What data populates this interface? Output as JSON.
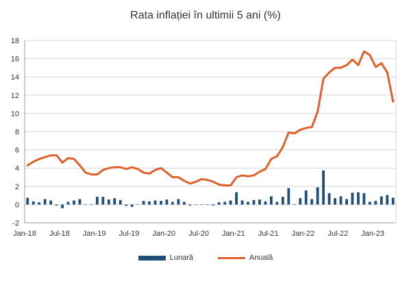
{
  "chart_data": {
    "type": "bar",
    "title": "Rata inflației în ultimii 5 ani (%)",
    "ylim": [
      -2,
      18
    ],
    "yticks": [
      -2,
      0,
      2,
      4,
      6,
      8,
      10,
      12,
      14,
      16,
      18
    ],
    "x_tick_labels": [
      "Jan-18",
      "Jul-18",
      "Jan-19",
      "Jul-19",
      "Jan-20",
      "Jul-20",
      "Jan-21",
      "Jul-21",
      "Jan-22",
      "Jul-22",
      "Jan-23"
    ],
    "x_tick_period": 6,
    "grid": true,
    "legend": "bottom",
    "colors": {
      "monthly": "#1F4E79",
      "annual": "#E0602A"
    },
    "series": [
      {
        "name": "Lunară",
        "type": "bar",
        "values": [
          0.75,
          0.35,
          0.25,
          0.6,
          0.45,
          -0.1,
          -0.4,
          0.3,
          0.45,
          0.6,
          0.05,
          0.05,
          0.85,
          0.85,
          0.55,
          0.7,
          0.5,
          -0.15,
          -0.25,
          0.0,
          0.4,
          0.35,
          0.45,
          0.4,
          0.55,
          0.3,
          0.6,
          0.3,
          -0.1,
          -0.05,
          -0.05,
          0.0,
          -0.1,
          0.25,
          0.3,
          0.45,
          1.35,
          0.45,
          0.3,
          0.5,
          0.55,
          0.35,
          0.9,
          0.3,
          0.85,
          1.8,
          0.05,
          0.7,
          1.55,
          0.6,
          1.9,
          3.75,
          1.25,
          0.7,
          0.9,
          0.6,
          1.3,
          1.35,
          1.25,
          0.3,
          0.4,
          0.9,
          1.05,
          0.75
        ]
      },
      {
        "name": "Anuală",
        "type": "line",
        "values": [
          4.3,
          4.7,
          5.0,
          5.2,
          5.4,
          5.4,
          4.6,
          5.1,
          5.0,
          4.3,
          3.5,
          3.3,
          3.3,
          3.8,
          4.0,
          4.1,
          4.1,
          3.9,
          4.1,
          3.9,
          3.5,
          3.4,
          3.8,
          4.0,
          3.5,
          3.0,
          3.0,
          2.6,
          2.3,
          2.5,
          2.8,
          2.7,
          2.5,
          2.2,
          2.1,
          2.1,
          3.0,
          3.2,
          3.1,
          3.2,
          3.6,
          3.9,
          5.0,
          5.3,
          6.3,
          7.9,
          7.8,
          8.2,
          8.4,
          8.5,
          10.2,
          13.8,
          14.5,
          15.0,
          15.0,
          15.3,
          15.9,
          15.3,
          16.8,
          16.4,
          15.1,
          15.5,
          14.5,
          11.3
        ]
      }
    ]
  }
}
